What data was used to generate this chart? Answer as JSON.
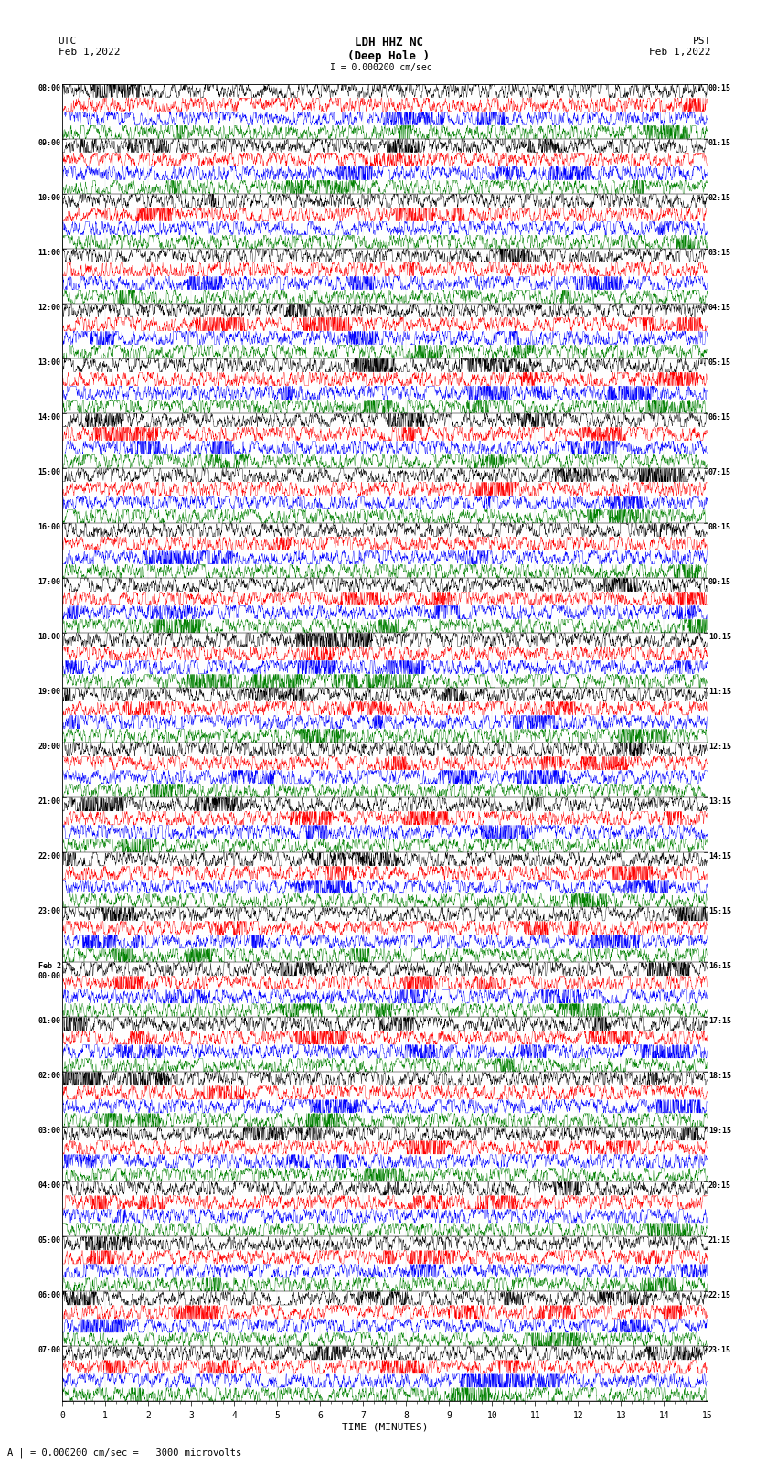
{
  "title_center": "LDH HHZ NC\n(Deep Hole )",
  "title_left": "UTC\nFeb 1,2022",
  "title_right": "PST\nFeb 1,2022",
  "scale_bar_label": "I = 0.000200 cm/sec",
  "footer_text": "A | = 0.000200 cm/sec =   3000 microvolts",
  "xlabel": "TIME (MINUTES)",
  "left_labels": [
    "08:00",
    "09:00",
    "10:00",
    "11:00",
    "12:00",
    "13:00",
    "14:00",
    "15:00",
    "16:00",
    "17:00",
    "18:00",
    "19:00",
    "20:00",
    "21:00",
    "22:00",
    "23:00",
    "Feb 2\n00:00",
    "01:00",
    "02:00",
    "03:00",
    "04:00",
    "05:00",
    "06:00",
    "07:00"
  ],
  "right_labels": [
    "00:15",
    "01:15",
    "02:15",
    "03:15",
    "04:15",
    "05:15",
    "06:15",
    "07:15",
    "08:15",
    "09:15",
    "10:15",
    "11:15",
    "12:15",
    "13:15",
    "14:15",
    "15:15",
    "16:15",
    "17:15",
    "18:15",
    "19:15",
    "20:15",
    "21:15",
    "22:15",
    "23:15"
  ],
  "n_hour_groups": 24,
  "traces_per_group": 4,
  "colors": [
    "black",
    "red",
    "blue",
    "green"
  ],
  "bg_color": "white",
  "figsize": [
    8.5,
    16.13
  ],
  "dpi": 100,
  "xmin": 0,
  "xmax": 15,
  "xticks": [
    0,
    1,
    2,
    3,
    4,
    5,
    6,
    7,
    8,
    9,
    10,
    11,
    12,
    13,
    14,
    15
  ],
  "n_points": 3000,
  "trace_amplitude": 0.38,
  "linewidth": 0.28
}
